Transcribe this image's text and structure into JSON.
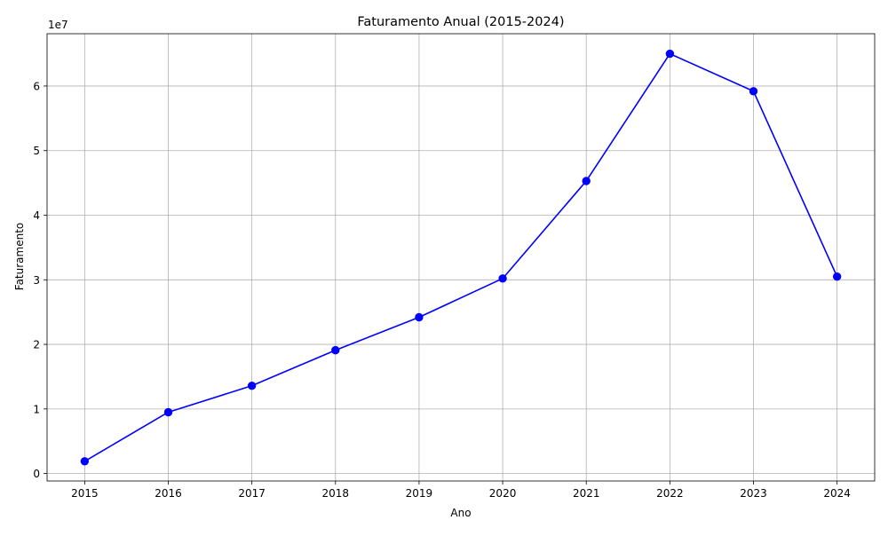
{
  "chart_data": {
    "type": "line",
    "title": "Faturamento Anual (2015-2024)",
    "xlabel": "Ano",
    "ylabel": "Faturamento",
    "y_scale_label": "1e7",
    "x": [
      2015,
      2016,
      2017,
      2018,
      2019,
      2020,
      2021,
      2022,
      2023,
      2024
    ],
    "x_tick_labels": [
      "2015",
      "2016",
      "2017",
      "2018",
      "2019",
      "2020",
      "2021",
      "2022",
      "2023",
      "2024"
    ],
    "series": [
      {
        "values": [
          1900000,
          9500000,
          13600000,
          19100000,
          24200000,
          30200000,
          45300000,
          65000000,
          59200000,
          30500000
        ],
        "color": "#0000ff",
        "marker": "circle"
      }
    ],
    "y_ticks": [
      0,
      10000000,
      20000000,
      30000000,
      40000000,
      50000000,
      60000000
    ],
    "y_tick_labels": [
      "0",
      "1",
      "2",
      "3",
      "4",
      "5",
      "6"
    ],
    "xlim": [
      2014.55,
      2024.45
    ],
    "ylim": [
      -1150000,
      68100000
    ],
    "grid": true,
    "legend": "none",
    "colors": {
      "line": "#0000ff",
      "grid": "#b0b0b0",
      "axes": "#000000"
    }
  }
}
